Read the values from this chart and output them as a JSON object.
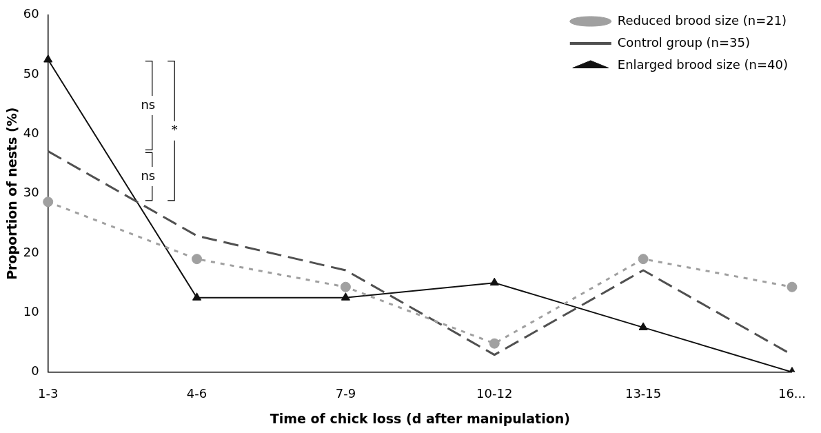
{
  "chart_data": {
    "type": "line",
    "xlabel": "Time of chick loss (d after manipulation)",
    "ylabel": "Proportion of nests (%)",
    "categories": [
      "1-3",
      "4-6",
      "7-9",
      "10-12",
      "13-15",
      "16..."
    ],
    "series": [
      {
        "name": "Reduced brood size (n=21)",
        "color": "#a0a0a0",
        "marker": "circle",
        "line_style": "dotted",
        "values": [
          28.6,
          19.0,
          14.3,
          4.8,
          19.0,
          14.3
        ]
      },
      {
        "name": "Control group (n=35)",
        "color": "#505050",
        "marker": "none",
        "line_style": "dashed",
        "values": [
          37.1,
          22.9,
          17.1,
          2.9,
          17.1,
          2.9
        ]
      },
      {
        "name": "Enlarged brood size (n=40)",
        "color": "#111111",
        "marker": "triangle",
        "line_style": "solid",
        "values": [
          52.5,
          12.5,
          12.5,
          15.0,
          7.5,
          0.0
        ]
      }
    ],
    "ylim": [
      0,
      60
    ],
    "yticks": [
      0,
      10,
      20,
      30,
      40,
      50,
      60
    ],
    "grid": false,
    "legend": "top right",
    "annotations": [
      "ns",
      "ns",
      "*"
    ]
  }
}
